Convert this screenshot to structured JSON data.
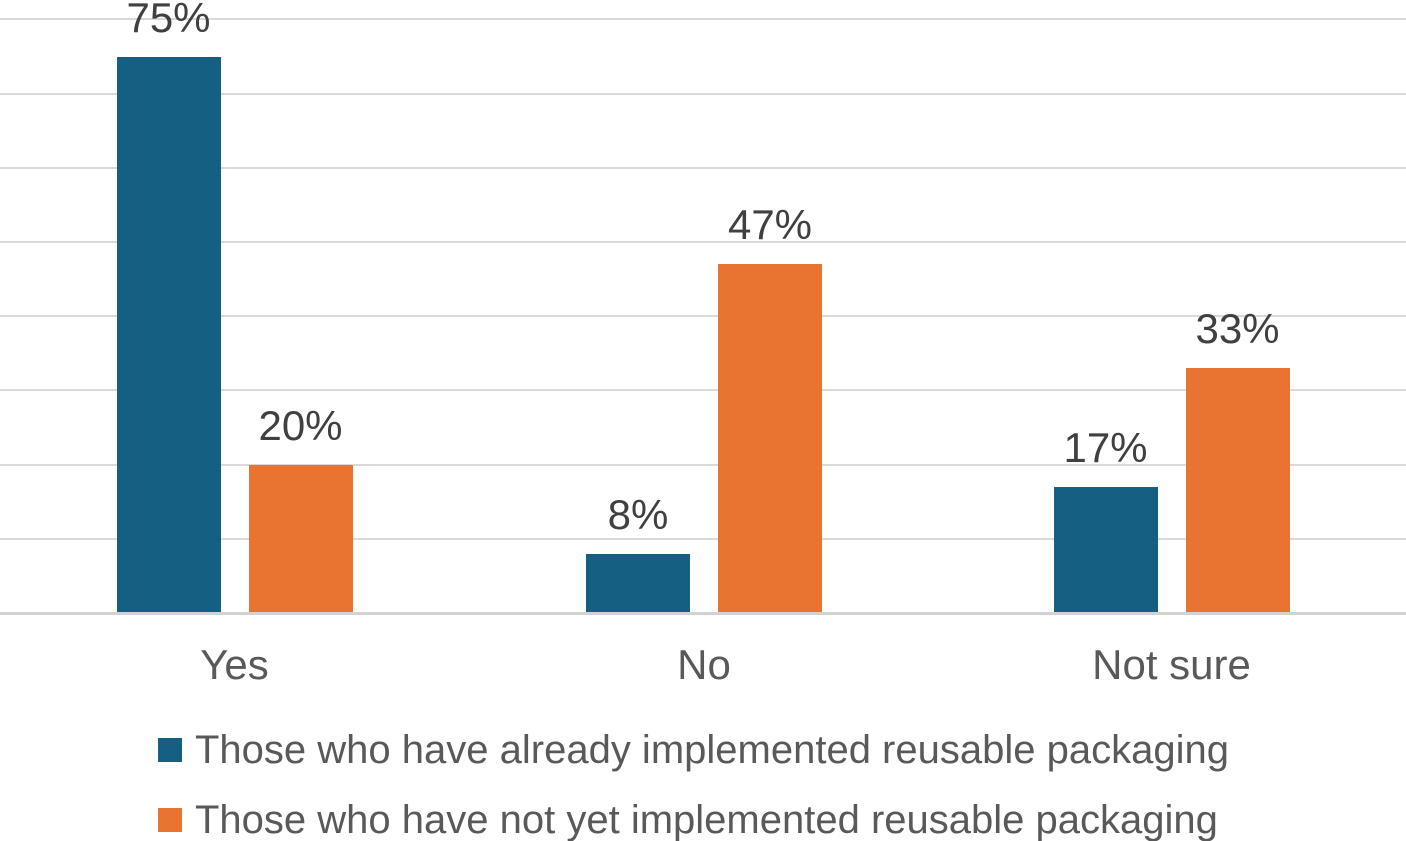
{
  "chart_data": {
    "type": "bar",
    "subtype": "grouped-vertical",
    "categories": [
      "Yes",
      "No",
      "Not sure"
    ],
    "series": [
      {
        "name": "Those who have already implemented reusable packaging",
        "color": "#155F82",
        "values": [
          75,
          8,
          17
        ]
      },
      {
        "name": "Those who have not yet implemented reusable packaging",
        "color": "#E97331",
        "values": [
          20,
          47,
          33
        ]
      }
    ],
    "data_labels": {
      "visible": true,
      "suffix": "%",
      "labels": [
        [
          "75%",
          "8%",
          "17%"
        ],
        [
          "20%",
          "47%",
          "33%"
        ]
      ],
      "color": "#404040"
    },
    "title": "",
    "xlabel": "",
    "ylabel": "",
    "ylim": [
      0,
      80
    ],
    "gridline_step": 10,
    "grid": "horizontal",
    "gridline_color": "#D9D9D9",
    "axis_label_color": "#595959",
    "legend": {
      "position": "bottom-left",
      "entries": [
        "Those who have already implemented reusable packaging",
        "Those who have not yet implemented reusable packaging"
      ]
    }
  }
}
